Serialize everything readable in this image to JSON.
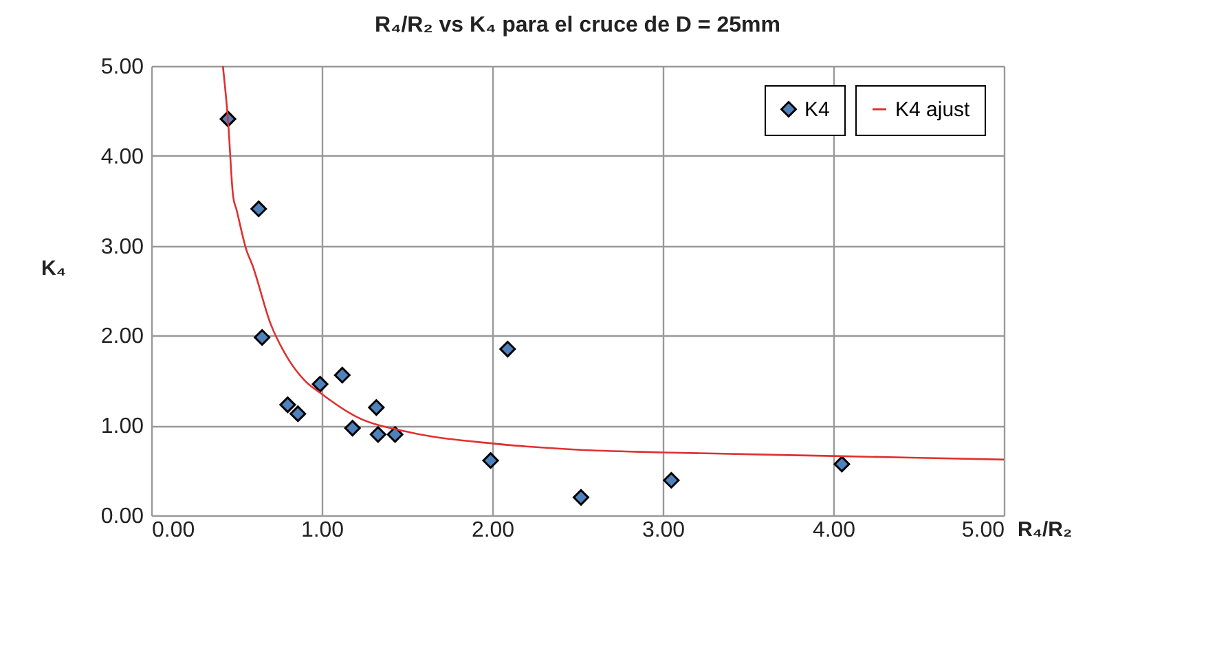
{
  "chart_data": {
    "type": "scatter",
    "title": "R₄/R₂ vs K₄ para el cruce de D = 25mm",
    "xlabel": "R₄/R₂",
    "ylabel": "K₄",
    "xlim": [
      0,
      5
    ],
    "ylim": [
      0,
      5
    ],
    "xticks": [
      {
        "value": 0,
        "label": "0.00"
      },
      {
        "value": 1,
        "label": "1.00"
      },
      {
        "value": 2,
        "label": "2.00"
      },
      {
        "value": 3,
        "label": "3.00"
      },
      {
        "value": 4,
        "label": "4.00"
      },
      {
        "value": 5,
        "label": "5.00"
      }
    ],
    "yticks": [
      {
        "value": 0,
        "label": "0.00"
      },
      {
        "value": 1,
        "label": "1.00"
      },
      {
        "value": 2,
        "label": "2.00"
      },
      {
        "value": 3,
        "label": "3.00"
      },
      {
        "value": 4,
        "label": "4.00"
      },
      {
        "value": 5,
        "label": "5.00"
      }
    ],
    "grid": true,
    "legend": "top right",
    "series": [
      {
        "name": "K4",
        "marker": "diamond",
        "color": "#4f81bd",
        "x": [
          0.45,
          0.63,
          0.65,
          0.8,
          0.86,
          0.99,
          1.12,
          1.18,
          1.32,
          1.33,
          1.43,
          1.99,
          2.09,
          2.52,
          3.05,
          4.05
        ],
        "values": [
          4.41,
          3.41,
          1.98,
          1.23,
          1.13,
          1.46,
          1.56,
          0.97,
          1.2,
          0.9,
          0.9,
          0.61,
          1.85,
          0.2,
          0.39,
          0.57
        ]
      },
      {
        "name": "K4 ajust",
        "type": "line",
        "marker": "none",
        "line_style": "solid",
        "color": "#e03030",
        "x": [
          0.42,
          0.45,
          0.48,
          0.5,
          0.56,
          0.59,
          0.7,
          0.8,
          0.9,
          1.0,
          1.2,
          1.5,
          2.0,
          2.5,
          3.0,
          4.0,
          5.0
        ],
        "values": [
          5.0,
          4.4,
          3.55,
          3.4,
          2.94,
          2.8,
          2.13,
          1.75,
          1.5,
          1.35,
          1.1,
          0.93,
          0.8,
          0.73,
          0.7,
          0.66,
          0.62
        ]
      }
    ]
  }
}
